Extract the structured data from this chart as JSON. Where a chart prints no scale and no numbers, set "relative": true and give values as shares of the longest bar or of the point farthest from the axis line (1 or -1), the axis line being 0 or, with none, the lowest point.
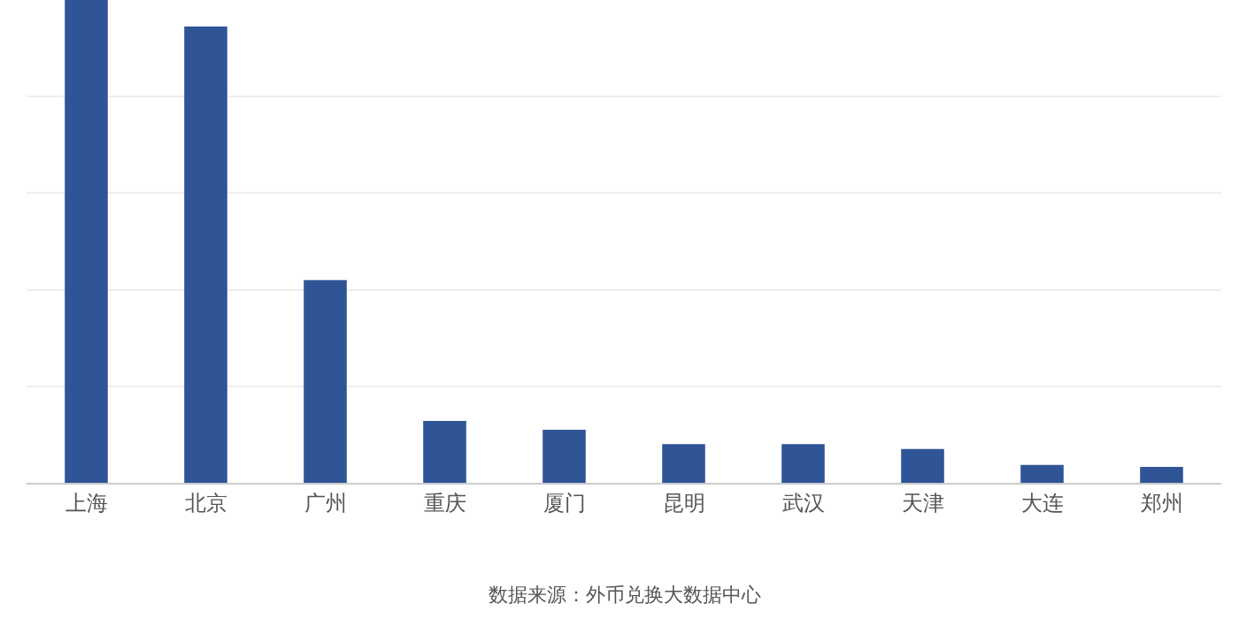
{
  "chart_data": {
    "type": "bar",
    "relative": true,
    "grid": "y",
    "categories": [
      "上海",
      "北京",
      "广州",
      "重庆",
      "厦门",
      "昆明",
      "武汉",
      "天津",
      "大连",
      "郑州"
    ],
    "series": [
      {
        "color": "#2f5597",
        "values": [
          1,
          0.945,
          0.42,
          0.128,
          0.11,
          0.08,
          0.08,
          0.07,
          0.037,
          0.033
        ]
      }
    ],
    "annotations": [
      "数据来源：外币兑换大数据中心"
    ]
  }
}
